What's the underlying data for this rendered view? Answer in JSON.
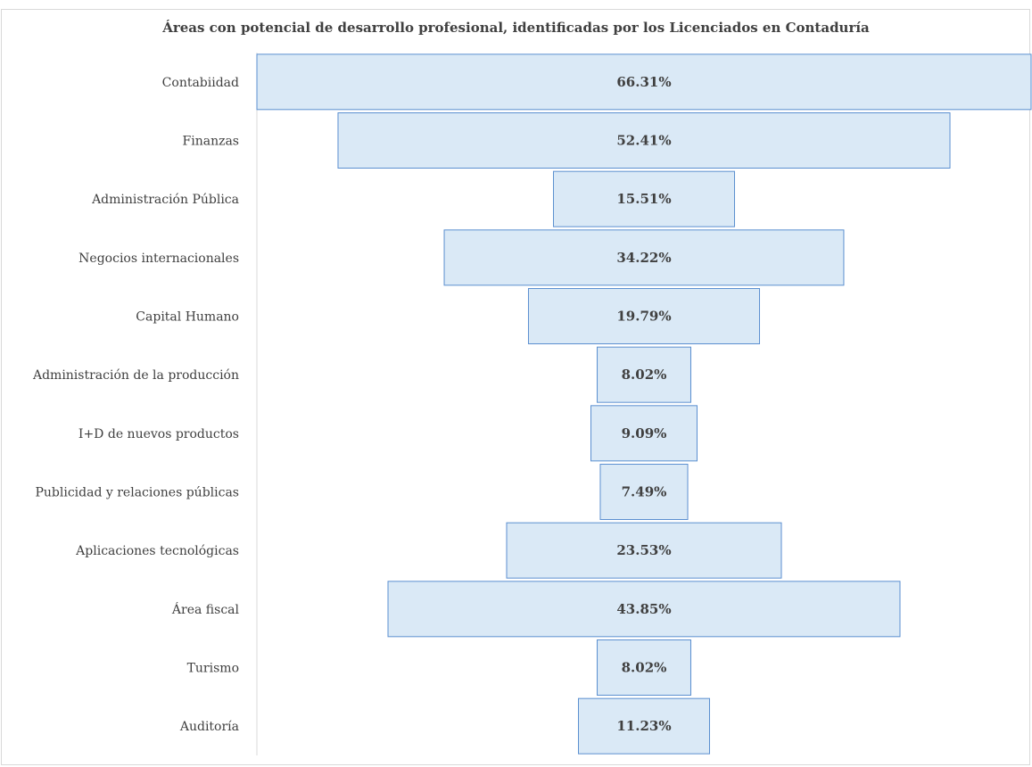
{
  "chart_data": {
    "type": "bar",
    "orientation": "horizontal-centered",
    "title": "Áreas con potencial de desarrollo profesional, identificadas por los Licenciados en Contaduría",
    "categories": [
      "Contabiidad",
      "Finanzas",
      "Administración Pública",
      "Negocios internacionales",
      "Capital Humano",
      "Administración de la producción",
      "I+D de nuevos productos",
      "Publicidad y relaciones públicas",
      "Aplicaciones tecnológicas",
      "Área fiscal",
      "Turismo",
      "Auditoría"
    ],
    "values": [
      66.31,
      52.41,
      15.51,
      34.22,
      19.79,
      8.02,
      9.09,
      7.49,
      23.53,
      43.85,
      8.02,
      11.23
    ],
    "data_labels": [
      "66.31%",
      "52.41%",
      "15.51%",
      "34.22%",
      "19.79%",
      "8.02%",
      "9.09%",
      "7.49%",
      "23.53%",
      "43.85%",
      "8.02%",
      "11.23%"
    ],
    "xlim": [
      0,
      66.31
    ],
    "grid": false,
    "legend": "none",
    "colors": {
      "bar_fill": "#dae9f6",
      "bar_stroke": "#5b8fd0",
      "text": "#404040",
      "axis": "#d9d9d9"
    }
  }
}
